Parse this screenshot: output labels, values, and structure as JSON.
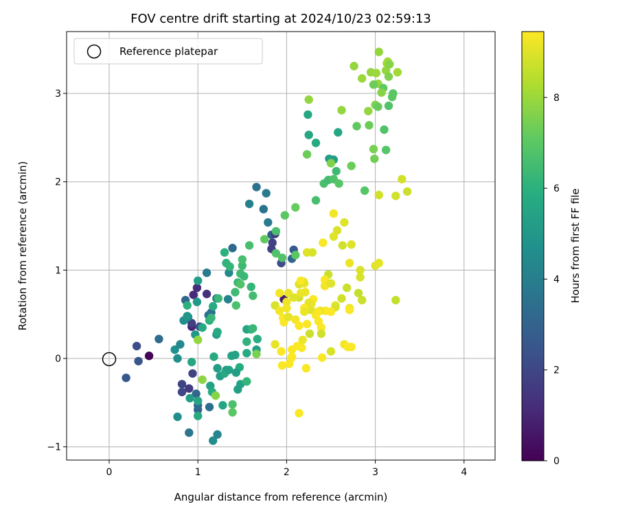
{
  "chart_data": {
    "type": "scatter",
    "title": "FOV centre drift starting at 2024/10/23 02:59:13",
    "xlabel": "Angular distance from reference (arcmin)",
    "ylabel": "Rotation from reference (arcmin)",
    "xlim": [
      -0.48,
      4.35
    ],
    "ylim": [
      -1.15,
      3.7
    ],
    "xticks": [
      0,
      1,
      2,
      3,
      4
    ],
    "yticks": [
      -1,
      0,
      1,
      2,
      3
    ],
    "grid": true,
    "legend": {
      "placement": "top-left",
      "entries": [
        "Reference platepar"
      ]
    },
    "reference_point": {
      "x": 0,
      "y": 0
    },
    "colorbar": {
      "label": "Hours from first FF file",
      "min": 0,
      "max": 9.45,
      "ticks": [
        0,
        2,
        4,
        6,
        8
      ],
      "colormap": "viridis"
    },
    "points": [
      [
        0.45,
        0.03,
        0.1
      ],
      [
        0.31,
        0.14,
        2.2
      ],
      [
        0.33,
        -0.03,
        2.5
      ],
      [
        0.19,
        -0.22,
        2.6
      ],
      [
        0.56,
        0.22,
        3.3
      ],
      [
        0.74,
        0.1,
        4.7
      ],
      [
        0.77,
        0.0,
        4.6
      ],
      [
        0.8,
        0.16,
        4.4
      ],
      [
        0.77,
        -0.66,
        4.6
      ],
      [
        0.93,
        0.36,
        1.0
      ],
      [
        0.95,
        0.72,
        1.1
      ],
      [
        0.99,
        0.8,
        1.2
      ],
      [
        1.1,
        0.73,
        1.3
      ],
      [
        0.93,
        0.4,
        1.8
      ],
      [
        0.9,
        -0.34,
        1.6
      ],
      [
        0.94,
        -0.17,
        1.9
      ],
      [
        0.82,
        -0.29,
        1.9
      ],
      [
        0.82,
        -0.38,
        2.0
      ],
      [
        1.02,
        0.36,
        2.3
      ],
      [
        0.86,
        0.66,
        3.1
      ],
      [
        0.98,
        -0.4,
        3.1
      ],
      [
        1.0,
        -0.58,
        3.0
      ],
      [
        1.0,
        -0.53,
        3.3
      ],
      [
        1.13,
        -0.55,
        3.4
      ],
      [
        1.15,
        0.52,
        3.4
      ],
      [
        1.1,
        0.97,
        3.9
      ],
      [
        1.12,
        0.49,
        3.5
      ],
      [
        1.21,
        0.68,
        3.8
      ],
      [
        0.9,
        -0.84,
        3.7
      ],
      [
        0.89,
        0.47,
        4.4
      ],
      [
        0.84,
        0.43,
        4.7
      ],
      [
        0.88,
        0.48,
        4.9
      ],
      [
        0.99,
        0.64,
        5.0
      ],
      [
        0.97,
        0.27,
        5.0
      ],
      [
        1.0,
        0.88,
        5.3
      ],
      [
        0.91,
        -0.45,
        5.2
      ],
      [
        1.0,
        -0.48,
        5.5
      ],
      [
        1.0,
        -0.65,
        5.7
      ],
      [
        1.05,
        0.35,
        5.7
      ],
      [
        0.88,
        0.6,
        6.0
      ],
      [
        0.93,
        -0.04,
        5.6
      ],
      [
        1.13,
        0.43,
        6.0
      ],
      [
        1.15,
        0.46,
        6.3
      ],
      [
        1.17,
        0.59,
        5.8
      ],
      [
        1.14,
        -0.31,
        5.4
      ],
      [
        1.21,
        0.27,
        5.2
      ],
      [
        1.22,
        0.3,
        5.7
      ],
      [
        1.23,
        0.68,
        6.3
      ],
      [
        1.16,
        -0.38,
        5.8
      ],
      [
        1.18,
        0.02,
        5.7
      ],
      [
        1.22,
        -0.86,
        4.3
      ],
      [
        1.17,
        -0.93,
        4.6
      ],
      [
        1.22,
        -0.11,
        5.2
      ],
      [
        1.25,
        -0.2,
        5.2
      ],
      [
        1.28,
        -0.53,
        5.5
      ],
      [
        1.3,
        1.2,
        6.0
      ],
      [
        1.32,
        1.08,
        6.1
      ],
      [
        1.35,
        0.97,
        4.4
      ],
      [
        1.34,
        0.67,
        4.2
      ],
      [
        1.36,
        1.04,
        6.2
      ],
      [
        1.39,
        1.25,
        3.2
      ],
      [
        1.38,
        0.03,
        5.4
      ],
      [
        1.32,
        -0.13,
        5.1
      ],
      [
        1.3,
        -0.17,
        5.7
      ],
      [
        1.42,
        0.75,
        6.4
      ],
      [
        1.42,
        0.04,
        5.4
      ],
      [
        1.45,
        0.86,
        6.3
      ],
      [
        1.5,
        1.05,
        6.4
      ],
      [
        1.48,
        0.96,
        6.4
      ],
      [
        1.52,
        0.93,
        6.3
      ],
      [
        1.5,
        1.12,
        6.6
      ],
      [
        1.55,
        0.19,
        6.1
      ],
      [
        1.55,
        0.33,
        5.5
      ],
      [
        1.6,
        0.33,
        5.9
      ],
      [
        1.47,
        -0.1,
        5.8
      ],
      [
        1.48,
        -0.29,
        5.4
      ],
      [
        1.55,
        -0.26,
        6.2
      ],
      [
        1.58,
        1.28,
        6.6
      ],
      [
        1.6,
        0.81,
        6.2
      ],
      [
        1.62,
        0.71,
        6.5
      ],
      [
        1.67,
        0.22,
        5.9
      ],
      [
        1.66,
        0.1,
        5.3
      ],
      [
        1.62,
        0.34,
        6.3
      ],
      [
        1.43,
        0.6,
        6.7
      ],
      [
        1.45,
        -0.35,
        5.3
      ],
      [
        1.43,
        -0.16,
        5.3
      ],
      [
        1.39,
        -0.52,
        6.7
      ],
      [
        1.39,
        -0.61,
        7.0
      ],
      [
        1.2,
        -0.42,
        7.7
      ],
      [
        1.05,
        -0.24,
        7.8
      ],
      [
        1.0,
        0.21,
        7.9
      ],
      [
        1.48,
        0.84,
        6.8
      ],
      [
        1.55,
        0.06,
        5.7
      ],
      [
        1.66,
        0.05,
        7.5
      ],
      [
        1.35,
        -0.13,
        5.4
      ],
      [
        1.66,
        1.94,
        3.6
      ],
      [
        1.77,
        1.87,
        3.9
      ],
      [
        1.58,
        1.75,
        4.1
      ],
      [
        1.74,
        1.69,
        3.6
      ],
      [
        1.79,
        1.54,
        3.9
      ],
      [
        1.83,
        1.4,
        2.9
      ],
      [
        1.87,
        1.41,
        1.6
      ],
      [
        1.84,
        1.31,
        1.9
      ],
      [
        1.83,
        1.24,
        1.8
      ],
      [
        1.94,
        1.08,
        2.2
      ],
      [
        2.08,
        1.23,
        2.7
      ],
      [
        2.06,
        1.13,
        3.1
      ],
      [
        1.88,
        1.19,
        6.8
      ],
      [
        1.95,
        1.14,
        6.8
      ],
      [
        2.1,
        1.17,
        7.0
      ],
      [
        1.98,
        1.62,
        7.0
      ],
      [
        2.1,
        1.71,
        7.2
      ],
      [
        1.75,
        1.35,
        7.1
      ],
      [
        1.88,
        1.44,
        6.6
      ],
      [
        1.97,
        0.67,
        0.8
      ],
      [
        2.24,
        2.76,
        5.6
      ],
      [
        2.25,
        2.53,
        5.6
      ],
      [
        2.33,
        2.44,
        5.7
      ],
      [
        2.48,
        2.26,
        5.2
      ],
      [
        2.53,
        2.25,
        5.3
      ],
      [
        2.58,
        2.56,
        5.6
      ],
      [
        2.56,
        2.12,
        6.4
      ],
      [
        2.42,
        1.98,
        6.6
      ],
      [
        2.47,
        2.02,
        6.5
      ],
      [
        2.53,
        2.03,
        6.8
      ],
      [
        2.5,
        2.21,
        7.6
      ],
      [
        2.73,
        2.18,
        7.3
      ],
      [
        2.59,
        1.98,
        6.9
      ],
      [
        2.23,
        2.31,
        7.3
      ],
      [
        2.33,
        1.79,
        6.6
      ],
      [
        2.25,
        2.93,
        7.9
      ],
      [
        2.62,
        2.81,
        7.9
      ],
      [
        2.79,
        2.63,
        7.1
      ],
      [
        2.93,
        2.64,
        7.3
      ],
      [
        2.92,
        2.8,
        7.9
      ],
      [
        3.0,
        2.87,
        7.6
      ],
      [
        3.03,
        2.85,
        7.2
      ],
      [
        2.98,
        2.37,
        7.5
      ],
      [
        3.12,
        2.36,
        6.9
      ],
      [
        2.99,
        2.26,
        7.4
      ],
      [
        2.88,
        1.9,
        6.9
      ],
      [
        3.1,
        2.59,
        6.8
      ],
      [
        3.04,
        1.85,
        8.8
      ],
      [
        3.23,
        1.84,
        8.8
      ],
      [
        3.36,
        1.89,
        8.7
      ],
      [
        3.3,
        2.03,
        8.8
      ],
      [
        2.76,
        3.31,
        7.9
      ],
      [
        2.85,
        3.17,
        8.0
      ],
      [
        2.95,
        3.24,
        7.9
      ],
      [
        3.01,
        3.23,
        8.0
      ],
      [
        3.04,
        3.47,
        7.9
      ],
      [
        3.13,
        3.34,
        8.1
      ],
      [
        3.12,
        3.26,
        7.9
      ],
      [
        3.14,
        3.36,
        8.1
      ],
      [
        3.16,
        3.33,
        7.7
      ],
      [
        3.25,
        3.24,
        8.1
      ],
      [
        3.15,
        3.19,
        7.6
      ],
      [
        3.03,
        3.11,
        7.9
      ],
      [
        2.98,
        3.1,
        7.3
      ],
      [
        3.09,
        3.06,
        7.1
      ],
      [
        3.19,
        2.96,
        7.0
      ],
      [
        3.2,
        3.0,
        7.0
      ],
      [
        3.15,
        2.86,
        6.8
      ],
      [
        3.07,
        3.01,
        7.7
      ],
      [
        2.53,
        1.64,
        9.3
      ],
      [
        2.57,
        1.45,
        8.9
      ],
      [
        2.65,
        1.54,
        9.0
      ],
      [
        2.53,
        1.38,
        9.0
      ],
      [
        2.63,
        1.28,
        8.8
      ],
      [
        2.73,
        1.29,
        9.0
      ],
      [
        2.41,
        1.31,
        9.4
      ],
      [
        2.71,
        1.08,
        9.2
      ],
      [
        2.83,
        1.0,
        8.9
      ],
      [
        2.83,
        0.92,
        8.9
      ],
      [
        2.68,
        0.8,
        8.7
      ],
      [
        2.81,
        0.74,
        8.6
      ],
      [
        2.85,
        0.66,
        8.7
      ],
      [
        2.62,
        0.68,
        8.8
      ],
      [
        2.47,
        0.95,
        8.7
      ],
      [
        2.43,
        0.89,
        9.4
      ],
      [
        2.43,
        0.82,
        9.3
      ],
      [
        2.5,
        0.85,
        9.0
      ],
      [
        2.55,
        0.6,
        9.1
      ],
      [
        2.44,
        0.54,
        9.4
      ],
      [
        2.55,
        0.58,
        8.9
      ],
      [
        2.5,
        0.53,
        9.4
      ],
      [
        2.71,
        0.57,
        9.2
      ],
      [
        2.71,
        0.55,
        9.4
      ],
      [
        2.38,
        0.54,
        9.2
      ],
      [
        2.35,
        0.53,
        9.4
      ],
      [
        2.3,
        0.67,
        9.4
      ],
      [
        2.28,
        0.62,
        9.2
      ],
      [
        2.25,
        0.63,
        9.1
      ],
      [
        2.27,
        0.55,
        9.0
      ],
      [
        2.2,
        0.57,
        9.4
      ],
      [
        2.2,
        0.53,
        9.2
      ],
      [
        2.14,
        0.69,
        8.8
      ],
      [
        2.16,
        0.74,
        9.2
      ],
      [
        2.21,
        0.75,
        9.2
      ],
      [
        2.2,
        0.85,
        9.3
      ],
      [
        2.14,
        0.84,
        9.0
      ],
      [
        2.19,
        0.87,
        9.0
      ],
      [
        2.23,
        1.2,
        9.0
      ],
      [
        2.29,
        1.2,
        8.9
      ],
      [
        2.16,
        0.88,
        9.4
      ],
      [
        2.02,
        0.74,
        9.2
      ],
      [
        1.92,
        0.74,
        9.3
      ],
      [
        1.87,
        0.6,
        8.9
      ],
      [
        1.92,
        0.54,
        9.3
      ],
      [
        2.0,
        0.64,
        9.2
      ],
      [
        2.0,
        0.57,
        9.3
      ],
      [
        2.08,
        0.69,
        9.0
      ],
      [
        1.96,
        0.46,
        9.4
      ],
      [
        1.97,
        0.41,
        9.4
      ],
      [
        2.02,
        0.47,
        9.1
      ],
      [
        2.1,
        0.44,
        9.3
      ],
      [
        2.14,
        0.37,
        9.4
      ],
      [
        2.23,
        0.39,
        9.4
      ],
      [
        2.33,
        0.49,
        9.4
      ],
      [
        2.36,
        0.42,
        9.4
      ],
      [
        2.39,
        0.35,
        9.4
      ],
      [
        2.26,
        0.28,
        8.7
      ],
      [
        2.39,
        0.28,
        8.8
      ],
      [
        2.18,
        0.21,
        9.2
      ],
      [
        2.17,
        0.12,
        9.4
      ],
      [
        2.12,
        0.14,
        9.4
      ],
      [
        1.87,
        0.16,
        9.1
      ],
      [
        1.94,
        0.08,
        9.4
      ],
      [
        2.06,
        0.1,
        9.4
      ],
      [
        2.06,
        0.02,
        9.4
      ],
      [
        2.05,
        0.0,
        9.4
      ],
      [
        2.03,
        -0.06,
        9.4
      ],
      [
        1.95,
        -0.08,
        9.4
      ],
      [
        2.22,
        -0.11,
        9.4
      ],
      [
        2.4,
        0.01,
        9.4
      ],
      [
        2.5,
        0.08,
        8.9
      ],
      [
        2.65,
        0.16,
        9.3
      ],
      [
        2.73,
        0.13,
        9.4
      ],
      [
        2.69,
        0.13,
        9.4
      ],
      [
        2.14,
        -0.62,
        9.4
      ],
      [
        3.0,
        1.05,
        9.0
      ],
      [
        3.04,
        1.08,
        9.1
      ],
      [
        3.23,
        0.66,
        8.6
      ]
    ]
  }
}
